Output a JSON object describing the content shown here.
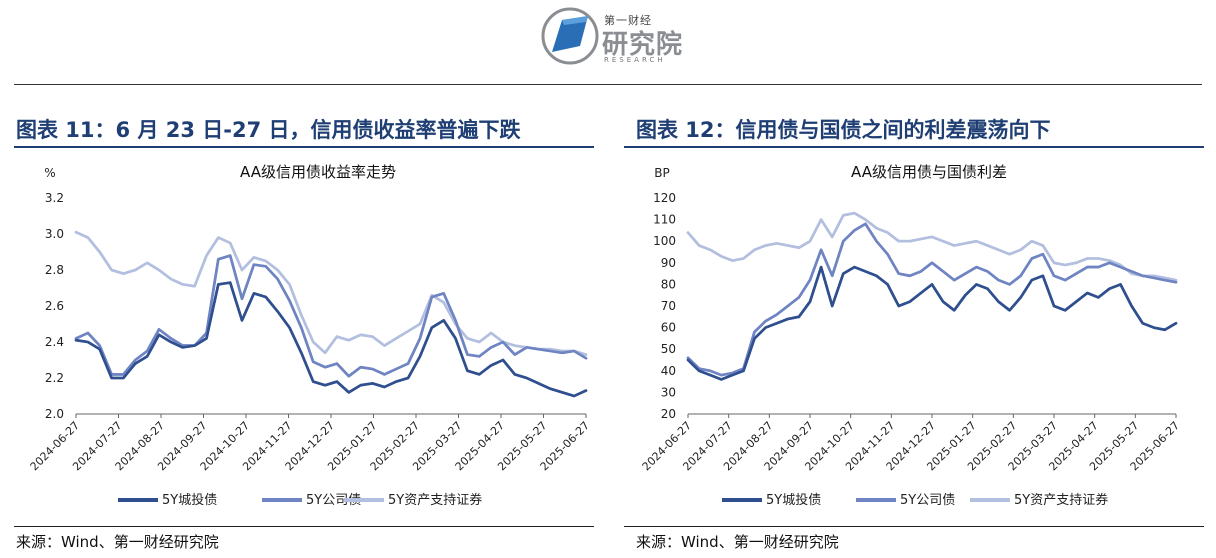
{
  "logo": {
    "small_text": "第一财经",
    "big_text": "研究院",
    "sub_text": "RESEARCH"
  },
  "figures": [
    {
      "heading": "图表 11：6 月 23 日-27 日，信用债收益率普遍下跌",
      "source": "来源：Wind、第一财经研究院"
    },
    {
      "heading": "图表 12：信用债与国债之间的利差震荡向下",
      "source": "来源：Wind、第一财经研究院"
    }
  ],
  "chart_data": [
    {
      "type": "line",
      "title": "AA级信用债收益率走势",
      "unit_label": "%",
      "ylim": [
        2.0,
        3.2
      ],
      "yticks": [
        "2.0",
        "2.2",
        "2.4",
        "2.6",
        "2.8",
        "3.0",
        "3.2"
      ],
      "x_ticks": [
        "2024-06-27",
        "2024-07-27",
        "2024-08-27",
        "2024-09-27",
        "2024-10-27",
        "2024-11-27",
        "2024-12-27",
        "2025-01-27",
        "2025-02-27",
        "2025-03-27",
        "2025-04-27",
        "2025-05-27",
        "2025-06-27"
      ],
      "grid": false,
      "legend_position": "bottom",
      "series": [
        {
          "name": "5Y城投债",
          "color": "#2f4f8f",
          "values": [
            2.41,
            2.4,
            2.36,
            2.2,
            2.2,
            2.28,
            2.32,
            2.44,
            2.4,
            2.37,
            2.38,
            2.42,
            2.72,
            2.73,
            2.52,
            2.67,
            2.65,
            2.57,
            2.48,
            2.34,
            2.18,
            2.16,
            2.18,
            2.12,
            2.16,
            2.17,
            2.15,
            2.18,
            2.2,
            2.32,
            2.48,
            2.52,
            2.42,
            2.24,
            2.22,
            2.27,
            2.3,
            2.22,
            2.2,
            2.17,
            2.14,
            2.12,
            2.1,
            2.13
          ]
        },
        {
          "name": "5Y公司债",
          "color": "#6f84c2",
          "values": [
            2.42,
            2.45,
            2.38,
            2.22,
            2.22,
            2.3,
            2.35,
            2.47,
            2.42,
            2.38,
            2.38,
            2.45,
            2.86,
            2.88,
            2.64,
            2.83,
            2.82,
            2.75,
            2.63,
            2.48,
            2.29,
            2.26,
            2.28,
            2.21,
            2.26,
            2.25,
            2.22,
            2.25,
            2.28,
            2.42,
            2.65,
            2.67,
            2.52,
            2.33,
            2.32,
            2.37,
            2.4,
            2.33,
            2.37,
            2.36,
            2.35,
            2.34,
            2.35,
            2.31
          ]
        },
        {
          "name": "5Y资产支持证券",
          "color": "#b3bfdf",
          "values": [
            3.01,
            2.98,
            2.9,
            2.8,
            2.78,
            2.8,
            2.84,
            2.8,
            2.75,
            2.72,
            2.71,
            2.88,
            2.98,
            2.95,
            2.8,
            2.87,
            2.85,
            2.8,
            2.72,
            2.55,
            2.4,
            2.34,
            2.43,
            2.41,
            2.44,
            2.43,
            2.38,
            2.42,
            2.46,
            2.5,
            2.66,
            2.62,
            2.5,
            2.42,
            2.4,
            2.45,
            2.4,
            2.38,
            2.37,
            2.36,
            2.36,
            2.35,
            2.35,
            2.33
          ]
        }
      ]
    },
    {
      "type": "line",
      "title": "AA级信用债与国债利差",
      "unit_label": "BP",
      "ylim": [
        20,
        120
      ],
      "yticks": [
        "20",
        "30",
        "40",
        "50",
        "60",
        "70",
        "80",
        "90",
        "100",
        "110",
        "120"
      ],
      "x_ticks": [
        "2024-06-27",
        "2024-07-27",
        "2024-08-27",
        "2024-09-27",
        "2024-10-27",
        "2024-11-27",
        "2024-12-27",
        "2025-01-27",
        "2025-02-27",
        "2025-03-27",
        "2025-04-27",
        "2025-05-27",
        "2025-06-27"
      ],
      "grid": false,
      "legend_position": "bottom",
      "series": [
        {
          "name": "5Y城投债",
          "color": "#2f4f8f",
          "values": [
            45,
            40,
            38,
            36,
            38,
            40,
            55,
            60,
            62,
            64,
            65,
            72,
            88,
            70,
            85,
            88,
            86,
            84,
            80,
            70,
            72,
            76,
            80,
            72,
            68,
            75,
            80,
            78,
            72,
            68,
            74,
            82,
            84,
            70,
            68,
            72,
            76,
            74,
            78,
            80,
            70,
            62,
            60,
            59,
            62
          ]
        },
        {
          "name": "5Y公司债",
          "color": "#6f84c2",
          "values": [
            46,
            41,
            40,
            38,
            39,
            41,
            58,
            63,
            66,
            70,
            74,
            82,
            96,
            84,
            100,
            105,
            108,
            100,
            94,
            85,
            84,
            86,
            90,
            86,
            82,
            85,
            88,
            86,
            82,
            80,
            84,
            92,
            94,
            84,
            82,
            85,
            88,
            88,
            90,
            88,
            86,
            84,
            83,
            82,
            81
          ]
        },
        {
          "name": "5Y资产支持证券",
          "color": "#b3bfdf",
          "values": [
            104,
            98,
            96,
            93,
            91,
            92,
            96,
            98,
            99,
            98,
            97,
            100,
            110,
            102,
            112,
            113,
            110,
            106,
            104,
            100,
            100,
            101,
            102,
            100,
            98,
            99,
            100,
            98,
            96,
            94,
            96,
            100,
            98,
            90,
            89,
            90,
            92,
            92,
            91,
            89,
            85,
            84,
            84,
            83,
            82
          ]
        }
      ]
    }
  ]
}
